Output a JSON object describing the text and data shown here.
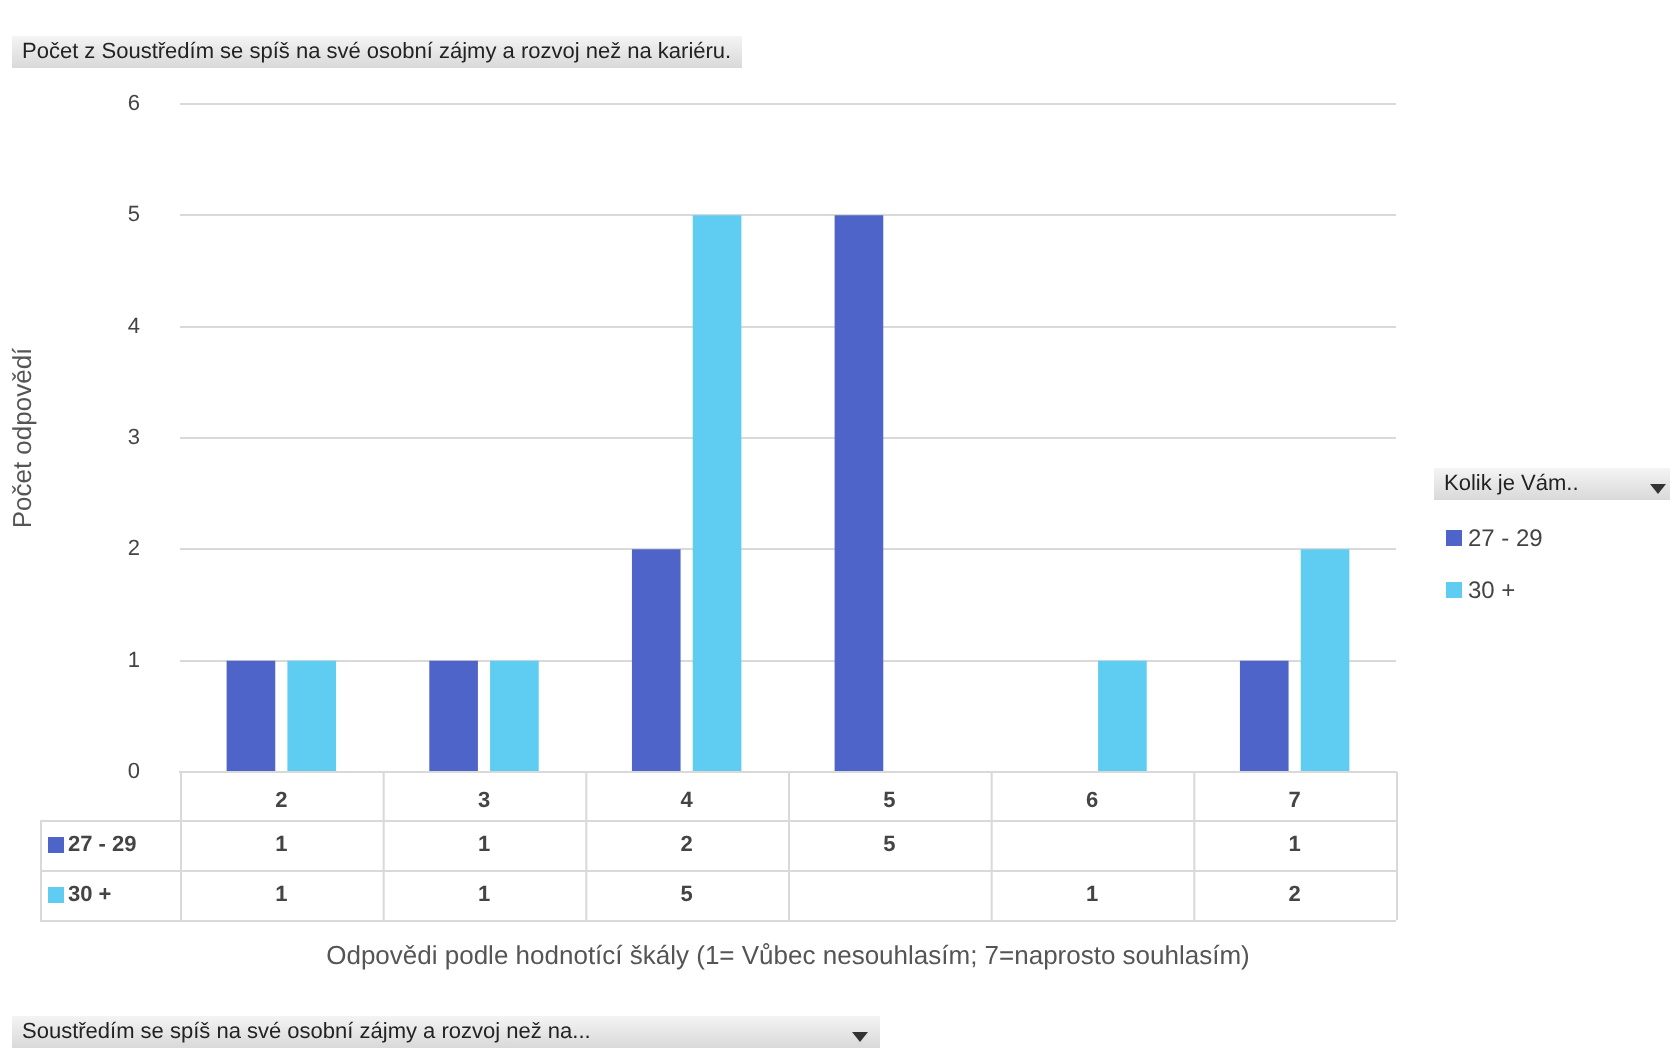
{
  "chart_data": {
    "type": "bar",
    "title": "Počet z  Soustředím se spíš na své osobní zájmy a rozvoj než na  kariéru.",
    "xlabel": "Odpovědi podle hodnotící škály (1= Vůbec nesouhlasím; 7=naprosto souhlasím)",
    "ylabel": "Počet odpovědí",
    "legend_title": "Kolik je Vám..",
    "annotations": [
      "Soustředím se spíš na své osobní zájmy a rozvoj než na..."
    ],
    "categories": [
      "2",
      "3",
      "4",
      "5",
      "6",
      "7"
    ],
    "series": [
      {
        "name": "27 - 29",
        "color": "#4f64c8",
        "values": [
          1,
          1,
          2,
          5,
          null,
          1
        ]
      },
      {
        "name": "30 +",
        "color": "#5fcdf2",
        "values": [
          1,
          1,
          5,
          null,
          1,
          2
        ]
      }
    ],
    "ylim": [
      0,
      6
    ],
    "yticks": [
      0,
      1,
      2,
      3,
      4,
      5,
      6
    ],
    "grid": "y",
    "legend": "right",
    "data_labels": true
  }
}
